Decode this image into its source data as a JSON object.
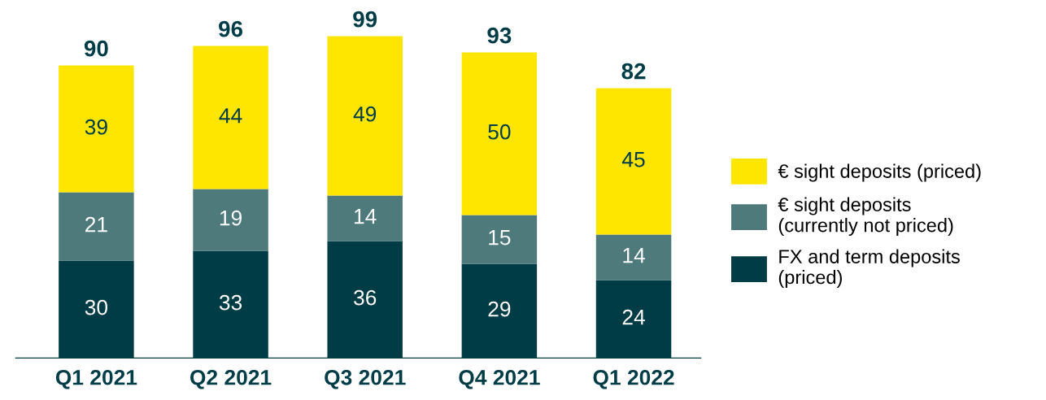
{
  "chart_data": {
    "type": "bar",
    "stacked": true,
    "data_labels": true,
    "legend": "right",
    "grid": false,
    "categories": [
      "Q1 2021",
      "Q2 2021",
      "Q3 2021",
      "Q4 2021",
      "Q1 2022"
    ],
    "series": [
      {
        "name": "FX and term deposits (priced)",
        "color": "#003c46",
        "values": [
          30,
          33,
          36,
          29,
          24
        ]
      },
      {
        "name": "€ sight deposits (currently not priced)",
        "color": "#4e7a7c",
        "values": [
          21,
          19,
          14,
          15,
          14
        ]
      },
      {
        "name": "€ sight deposits (priced)",
        "color": "#ffe600",
        "values": [
          39,
          44,
          49,
          50,
          45
        ]
      }
    ],
    "totals": [
      "90",
      "96",
      "99",
      "93",
      "82"
    ]
  }
}
